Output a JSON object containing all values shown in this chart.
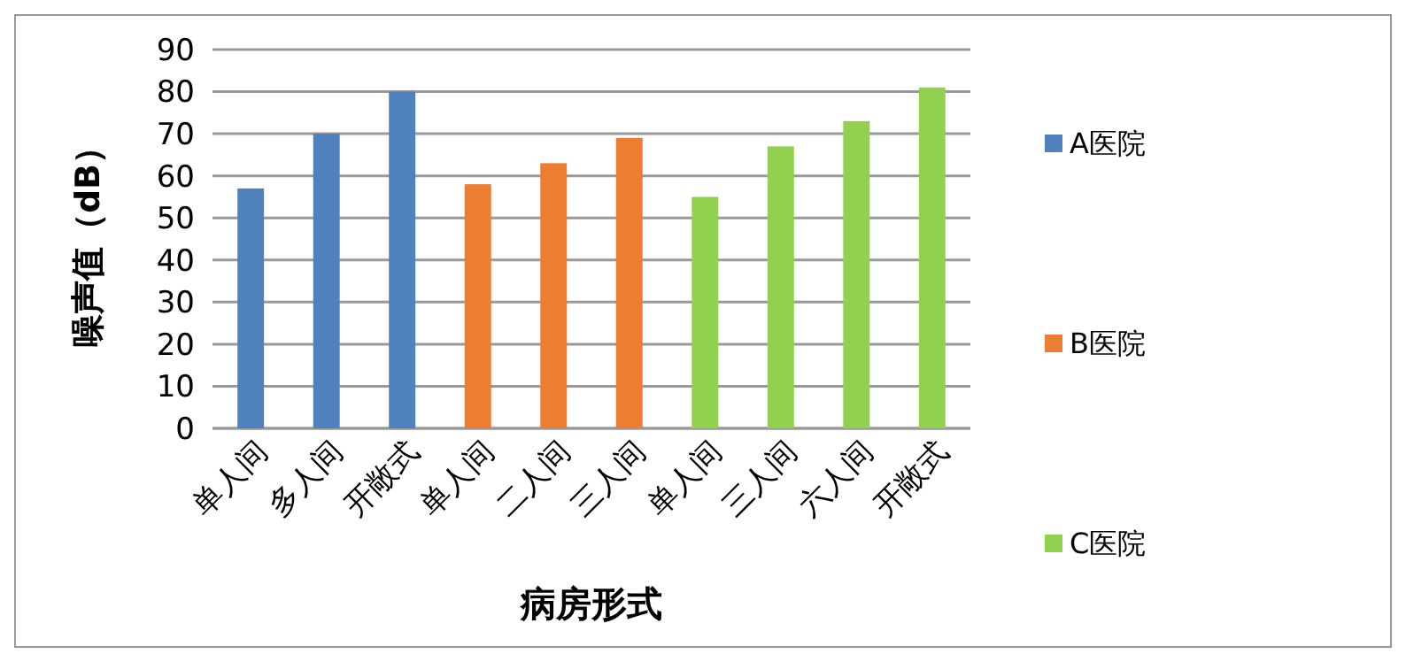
{
  "chart_data": {
    "type": "bar",
    "xlabel": "病房形式",
    "ylabel": "噪声值（dB）",
    "categories": [
      "单人间",
      "多人间",
      "开敞式",
      "单人间",
      "二人间",
      "三人间",
      "单人间",
      "三人间",
      "六人间",
      "开敞式"
    ],
    "series": [
      {
        "name": "A医院",
        "color": "#4f81bd",
        "values": [
          57,
          70,
          80,
          null,
          null,
          null,
          null,
          null,
          null,
          null
        ]
      },
      {
        "name": "B医院",
        "color": "#ed7d31",
        "values": [
          null,
          null,
          null,
          58,
          63,
          69,
          null,
          null,
          null,
          null
        ]
      },
      {
        "name": "C医院",
        "color": "#92d050",
        "values": [
          null,
          null,
          null,
          null,
          null,
          null,
          55,
          67,
          73,
          81
        ]
      }
    ],
    "ylim": [
      0,
      90
    ],
    "yticks": [
      0,
      10,
      20,
      30,
      40,
      50,
      60,
      70,
      80,
      90
    ],
    "grid": "y",
    "legend": "right"
  }
}
